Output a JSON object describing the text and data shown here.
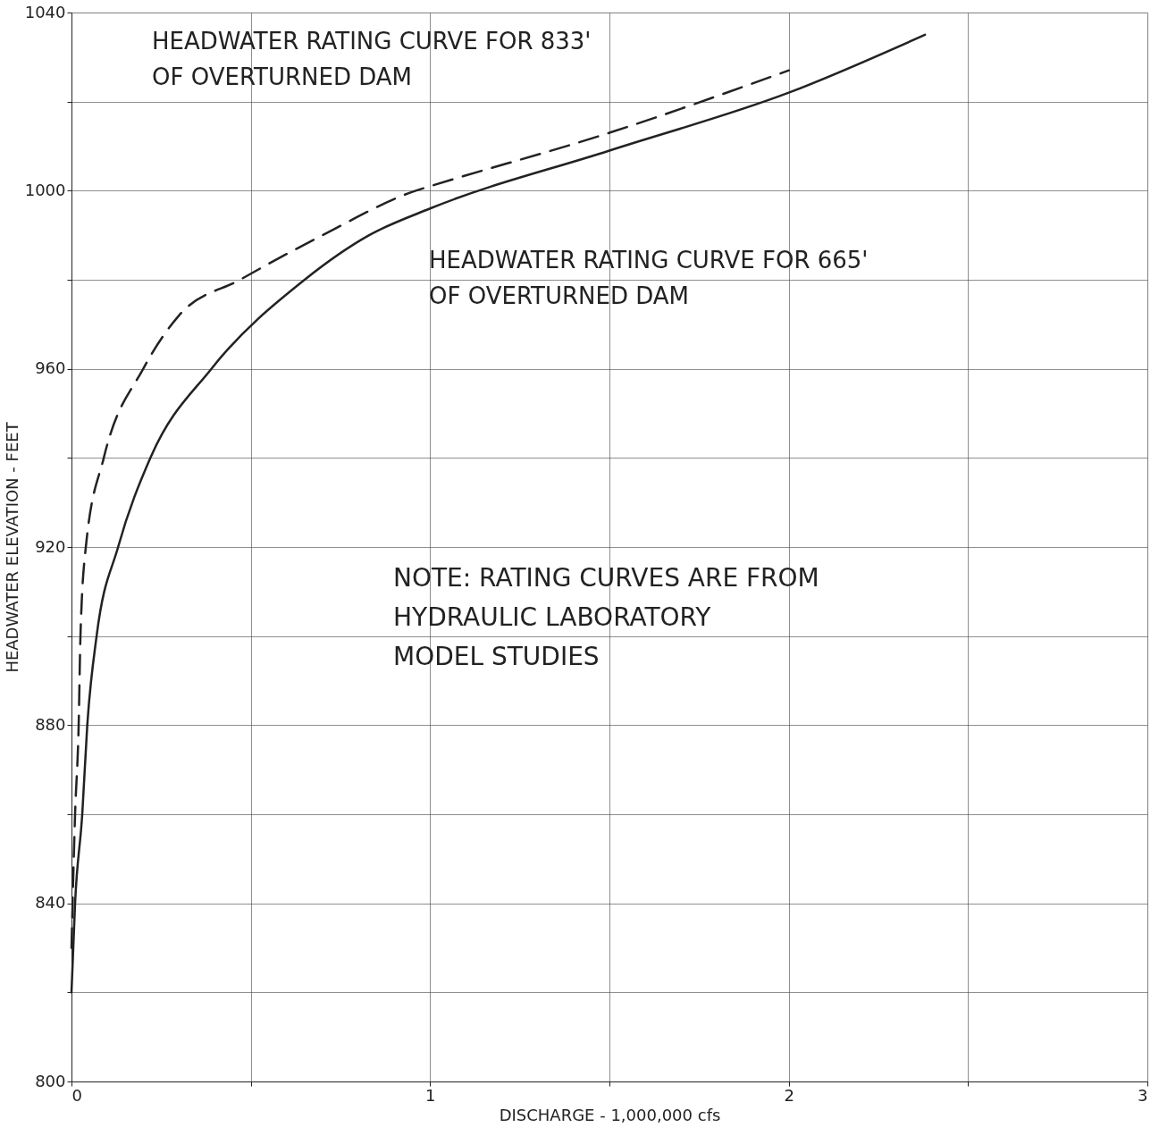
{
  "chart_data": {
    "type": "line",
    "xlabel": "DISCHARGE - 1,000,000 cfs",
    "ylabel": "HEADWATER ELEVATION - FEET",
    "xlim": [
      0,
      3
    ],
    "ylim": [
      800,
      1040
    ],
    "xticks": [
      0,
      {
        "value": 0.5,
        "label": null
      },
      1,
      {
        "value": 1.5,
        "label": null
      },
      2,
      {
        "value": 2.5,
        "label": null
      },
      3
    ],
    "yticks": [
      800,
      {
        "value": 820,
        "label": null
      },
      840,
      {
        "value": 860,
        "label": null
      },
      880,
      {
        "value": 900,
        "label": null
      },
      920,
      {
        "value": 940,
        "label": null
      },
      960,
      {
        "value": 980,
        "label": null
      },
      1000,
      {
        "value": 1020,
        "label": null
      },
      1040
    ],
    "grid": true,
    "legend": false,
    "series": [
      {
        "name": "HEADWATER RATING CURVE FOR 833' OF OVERTURNED DAM",
        "color": "#222222",
        "line_style": "dashed",
        "x": [
          0.0,
          0.01,
          0.02,
          0.025,
          0.04,
          0.09,
          0.2,
          0.3,
          0.47,
          0.7,
          0.96,
          1.0,
          1.5,
          2.0
        ],
        "values": [
          830,
          860,
          880,
          900,
          920,
          940,
          960,
          972,
          980,
          990,
          1000,
          1001,
          1013,
          1027
        ]
      },
      {
        "name": "HEADWATER RATING CURVE FOR 665' OF OVERTURNED DAM",
        "color": "#222222",
        "line_style": "solid",
        "x": [
          0.0,
          0.01,
          0.03,
          0.044,
          0.07,
          0.13,
          0.22,
          0.39,
          0.65,
          0.83,
          1.0,
          1.5,
          2.0,
          2.38
        ],
        "values": [
          820,
          840,
          860,
          880,
          900,
          920,
          940,
          960,
          980,
          990,
          996,
          1009,
          1022,
          1035
        ]
      }
    ],
    "annotations": [
      "NOTE:  RATING CURVES ARE FROM\nHYDRAULIC LABORATORY\nMODEL STUDIES"
    ]
  }
}
